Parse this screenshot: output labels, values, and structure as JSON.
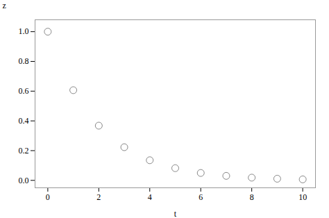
{
  "chart_data": {
    "type": "scatter",
    "x": [
      0,
      1,
      2,
      3,
      4,
      5,
      6,
      7,
      8,
      9,
      10
    ],
    "values": [
      1.0,
      0.6065,
      0.3679,
      0.2231,
      0.1353,
      0.0821,
      0.0498,
      0.0302,
      0.0183,
      0.0111,
      0.0067
    ],
    "xlabel": "t",
    "ylabel": "z",
    "xlim": [
      -0.5,
      10.5
    ],
    "ylim": [
      -0.05,
      1.08
    ],
    "xticks": [
      0,
      2,
      4,
      6,
      8,
      10
    ],
    "yticks": [
      {
        "value": 0.0,
        "label": "0.0"
      },
      0.2,
      0.4,
      0.6,
      0.8,
      {
        "value": 1.0,
        "label": "1.0"
      }
    ],
    "color": "#888888",
    "marker": "hollow",
    "grid": false
  }
}
